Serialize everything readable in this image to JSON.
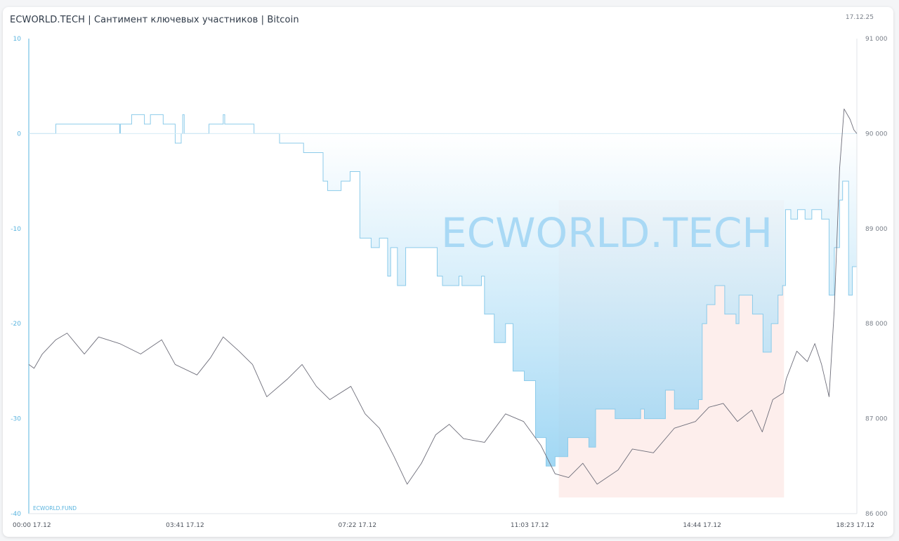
{
  "header": {
    "title": "ECWORLD.TECH | Сантимент ключевых участников | Bitcoin",
    "date": "17.12.25"
  },
  "watermark": "ECWORLD.TECH",
  "footer_brand": "ECWORLD.FUND",
  "colors": {
    "sentiment_line": "#8ccbea",
    "sentiment_fill_bottom": "#8fd0f2",
    "price_line": "#6e6e7a",
    "highlight": "#fdeeec",
    "left_axis": "#5ab4df",
    "watermark": "#a9d9f5"
  },
  "chart_data": {
    "type": "line",
    "title": "ECWORLD.TECH | Сантимент ключевых участников | Bitcoin",
    "x_range": [
      "00:00",
      "18:23"
    ],
    "x_ticks": [
      "00:00 17.12",
      "03:41 17.12",
      "07:22 17.12",
      "11:03 17.12",
      "14:44 17.12",
      "18:23 17.12"
    ],
    "y_left": {
      "range": [
        -40,
        10
      ],
      "ticks": [
        "10",
        "0",
        "-10",
        "-20",
        "-30",
        "-40"
      ]
    },
    "y_right": {
      "range": [
        86000,
        91000
      ],
      "ticks": [
        "91 000",
        "90 000",
        "89 000",
        "88 000",
        "87 000",
        "86 000"
      ]
    },
    "highlight_region": {
      "from": "11:46",
      "to": "16:46",
      "y_left_range": [
        -38.3,
        -7
      ]
    },
    "series": [
      {
        "type": "step-area",
        "axis": "left",
        "points": [
          [
            "00:00",
            0
          ],
          [
            "00:36",
            1
          ],
          [
            "02:01",
            0
          ],
          [
            "02:02",
            1
          ],
          [
            "02:17",
            2
          ],
          [
            "02:34",
            1
          ],
          [
            "02:42",
            2
          ],
          [
            "02:59",
            1
          ],
          [
            "03:15",
            -1
          ],
          [
            "03:23",
            0
          ],
          [
            "03:25",
            2
          ],
          [
            "03:27",
            0
          ],
          [
            "04:00",
            1
          ],
          [
            "04:19",
            2
          ],
          [
            "04:21",
            1
          ],
          [
            "05:00",
            0
          ],
          [
            "05:34",
            -1
          ],
          [
            "06:06",
            -2
          ],
          [
            "06:32",
            -5
          ],
          [
            "06:38",
            -6
          ],
          [
            "06:56",
            -5
          ],
          [
            "07:08",
            -4
          ],
          [
            "07:21",
            -11
          ],
          [
            "07:36",
            -12
          ],
          [
            "07:47",
            -11
          ],
          [
            "07:58",
            -15
          ],
          [
            "08:02",
            -12
          ],
          [
            "08:11",
            -16
          ],
          [
            "08:22",
            -12
          ],
          [
            "09:04",
            -15
          ],
          [
            "09:11",
            -16
          ],
          [
            "09:33",
            -15
          ],
          [
            "09:37",
            -16
          ],
          [
            "10:03",
            -15
          ],
          [
            "10:07",
            -19
          ],
          [
            "10:20",
            -22
          ],
          [
            "10:35",
            -20
          ],
          [
            "10:45",
            -25
          ],
          [
            "11:00",
            -26
          ],
          [
            "11:15",
            -32
          ],
          [
            "11:29",
            -35
          ],
          [
            "11:41",
            -34
          ],
          [
            "11:58",
            -32
          ],
          [
            "12:26",
            -33
          ],
          [
            "12:35",
            -29
          ],
          [
            "13:01",
            -30
          ],
          [
            "13:35",
            -29
          ],
          [
            "13:40",
            -30
          ],
          [
            "14:08",
            -27
          ],
          [
            "14:20",
            -29
          ],
          [
            "14:52",
            -28
          ],
          [
            "14:57",
            -20
          ],
          [
            "15:03",
            -18
          ],
          [
            "15:14",
            -16
          ],
          [
            "15:27",
            -19
          ],
          [
            "15:42",
            -20
          ],
          [
            "15:46",
            -17
          ],
          [
            "16:04",
            -19
          ],
          [
            "16:18",
            -23
          ],
          [
            "16:29",
            -20
          ],
          [
            "16:38",
            -17
          ],
          [
            "16:44",
            -16
          ],
          [
            "16:48",
            -8
          ],
          [
            "16:55",
            -9
          ],
          [
            "17:04",
            -8
          ],
          [
            "17:14",
            -9
          ],
          [
            "17:23",
            -8
          ],
          [
            "17:36",
            -9
          ],
          [
            "17:46",
            -17
          ],
          [
            "17:53",
            -12
          ],
          [
            "18:00",
            -7
          ],
          [
            "18:04",
            -5
          ],
          [
            "18:12",
            -17
          ],
          [
            "18:17",
            -14
          ],
          [
            "18:23",
            -14
          ]
        ]
      },
      {
        "type": "line",
        "axis": "right",
        "points": [
          [
            "00:00",
            87570
          ],
          [
            "00:07",
            87530
          ],
          [
            "00:18",
            87680
          ],
          [
            "00:36",
            87830
          ],
          [
            "00:51",
            87900
          ],
          [
            "01:14",
            87680
          ],
          [
            "01:33",
            87860
          ],
          [
            "02:01",
            87790
          ],
          [
            "02:29",
            87680
          ],
          [
            "02:57",
            87830
          ],
          [
            "03:15",
            87570
          ],
          [
            "03:44",
            87460
          ],
          [
            "04:02",
            87640
          ],
          [
            "04:19",
            87860
          ],
          [
            "04:40",
            87710
          ],
          [
            "04:58",
            87570
          ],
          [
            "05:17",
            87230
          ],
          [
            "05:45",
            87420
          ],
          [
            "06:04",
            87570
          ],
          [
            "06:23",
            87340
          ],
          [
            "06:41",
            87200
          ],
          [
            "07:09",
            87340
          ],
          [
            "07:28",
            87050
          ],
          [
            "07:47",
            86900
          ],
          [
            "08:06",
            86610
          ],
          [
            "08:24",
            86310
          ],
          [
            "08:43",
            86530
          ],
          [
            "09:02",
            86830
          ],
          [
            "09:20",
            86940
          ],
          [
            "09:39",
            86790
          ],
          [
            "10:07",
            86750
          ],
          [
            "10:35",
            87050
          ],
          [
            "10:59",
            86970
          ],
          [
            "11:22",
            86720
          ],
          [
            "11:41",
            86420
          ],
          [
            "11:59",
            86380
          ],
          [
            "12:18",
            86530
          ],
          [
            "12:37",
            86310
          ],
          [
            "13:05",
            86460
          ],
          [
            "13:24",
            86680
          ],
          [
            "13:52",
            86640
          ],
          [
            "14:20",
            86900
          ],
          [
            "14:48",
            86970
          ],
          [
            "15:06",
            87120
          ],
          [
            "15:25",
            87160
          ],
          [
            "15:44",
            86970
          ],
          [
            "16:03",
            87090
          ],
          [
            "16:17",
            86860
          ],
          [
            "16:31",
            87200
          ],
          [
            "16:45",
            87270
          ],
          [
            "16:49",
            87420
          ],
          [
            "17:03",
            87710
          ],
          [
            "17:17",
            87600
          ],
          [
            "17:27",
            87790
          ],
          [
            "17:36",
            87570
          ],
          [
            "17:46",
            87230
          ],
          [
            "17:53",
            88160
          ],
          [
            "18:00",
            89630
          ],
          [
            "18:06",
            90260
          ],
          [
            "18:14",
            90150
          ],
          [
            "18:19",
            90040
          ],
          [
            "18:23",
            90000
          ]
        ]
      }
    ]
  }
}
